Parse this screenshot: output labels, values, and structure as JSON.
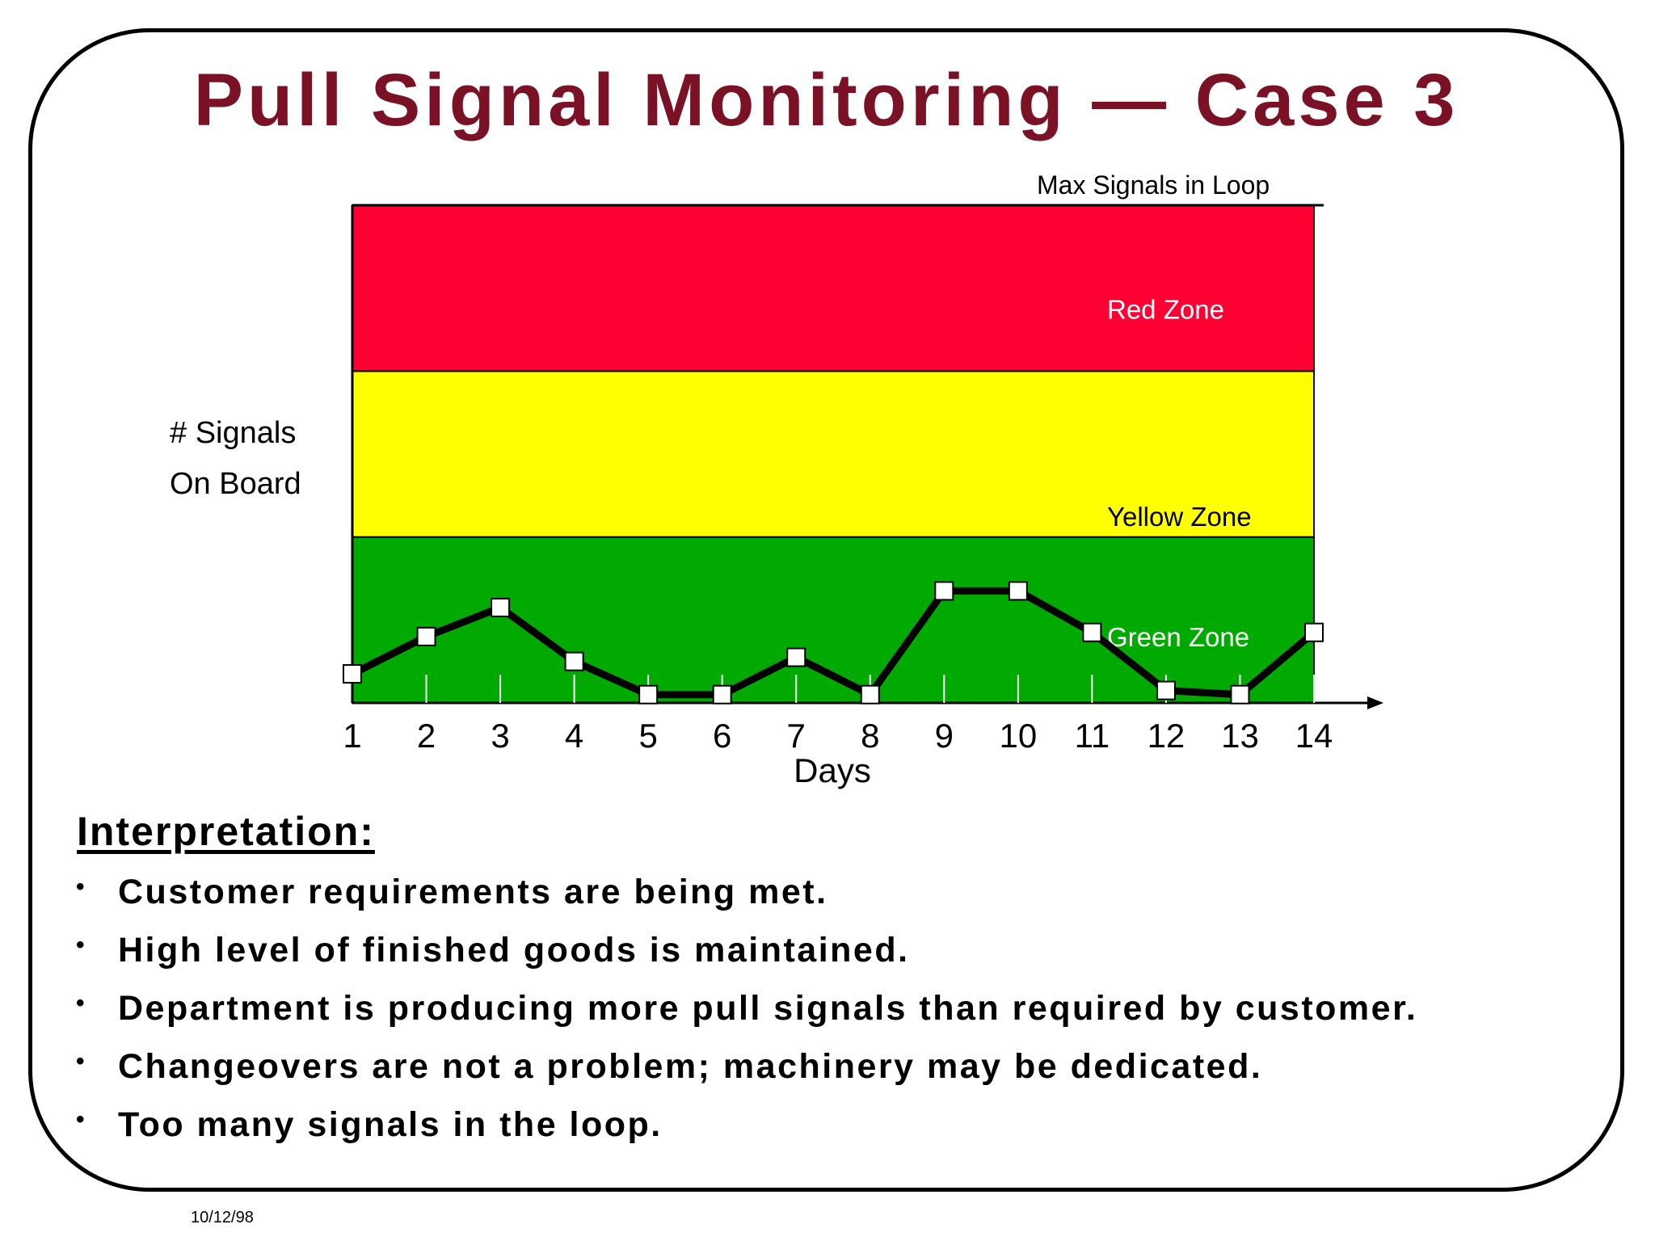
{
  "slide": {
    "title": "Pull Signal Monitoring — Case 3",
    "footer_date": "10/12/98"
  },
  "chart_data": {
    "type": "line",
    "xlabel": "Days",
    "ylabel": [
      "# Signals",
      "On Board"
    ],
    "x": [
      1,
      2,
      3,
      4,
      5,
      6,
      7,
      8,
      9,
      10,
      11,
      12,
      13,
      14
    ],
    "series": [
      {
        "values": [
          0.7,
          1.6,
          2.3,
          1.0,
          0.2,
          0.2,
          1.1,
          0.2,
          2.7,
          2.7,
          1.7,
          0.3,
          0.2,
          1.7
        ]
      }
    ],
    "ylim": [
      0,
      12
    ],
    "zones": [
      {
        "name": "Green Zone",
        "from": 0,
        "to": 4,
        "color": "#00aa00",
        "label_color": "#ffffff"
      },
      {
        "name": "Yellow Zone",
        "from": 4,
        "to": 8,
        "color": "#ffff00",
        "label_color": "#000000"
      },
      {
        "name": "Red Zone",
        "from": 8,
        "to": 12,
        "color": "#ff0033",
        "label_color": "#ffffff"
      }
    ],
    "max_line_label": "Max Signals in Loop",
    "grid": false,
    "line_color": "#000000",
    "marker": "square-open"
  },
  "interpretation": {
    "heading": "Interpretation:",
    "bullets": [
      "Customer requirements are being met.",
      "High level of finished goods is maintained.",
      "Department is producing more pull signals than required by customer.",
      "Changeovers are not a problem; machinery may be dedicated.",
      "Too many signals in the loop."
    ]
  },
  "colors": {
    "title": "#7a1125",
    "frame": "#000000"
  }
}
